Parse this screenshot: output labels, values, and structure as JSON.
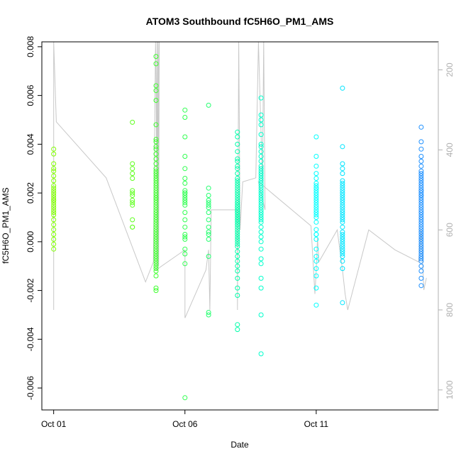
{
  "chart_data": {
    "type": "scatter",
    "title": "ATOM3 Southbound fC5H6O_PM1_AMS",
    "xlabel": "Date",
    "ylabel": "fC5H6O_PM1_AMS",
    "x_tick_labels": [
      "Oct 01",
      "Oct 06",
      "Oct 11"
    ],
    "x_tick_days": [
      1,
      6,
      11
    ],
    "xlim": [
      0.55,
      15.65
    ],
    "ylim": [
      -0.0069,
      0.0082
    ],
    "y_ticks": [
      -0.006,
      -0.004,
      -0.002,
      0.0,
      0.002,
      0.004,
      0.006,
      0.008
    ],
    "y_tick_labels": [
      "-0.006",
      "-0.004",
      "-0.002",
      "0.000",
      "0.002",
      "0.004",
      "0.006",
      "0.008"
    ],
    "right_axis": {
      "label": "",
      "reversed": true,
      "lim": [
        130,
        1050
      ],
      "ticks": [
        200,
        400,
        600,
        800,
        1000
      ],
      "tick_labels": [
        "200",
        "400",
        "600",
        "800",
        "1000"
      ],
      "color": "#b0b0b0"
    },
    "point_colors": {
      "day1": "#80ff00",
      "day4": "#60ff20",
      "day5": "#40ff30",
      "day6": "#30ff50",
      "day7": "#25ff70",
      "day8": "#00ffaa",
      "day9": "#00ffcc",
      "day11": "#00ffff",
      "day12": "#00e5ff",
      "day15": "#1e90ff"
    },
    "series": [
      {
        "x": [
          1.0,
          1.0,
          1.0,
          1.0,
          1.0,
          1.0,
          1.0,
          1.0,
          1.0,
          1.0,
          1.0,
          1.0,
          1.0,
          1.0,
          1.0,
          1.0,
          1.0,
          1.0,
          1.0,
          1.0,
          1.0,
          1.0,
          1.0,
          1.0,
          1.0,
          1.0,
          1.0,
          1.0
        ],
        "y": [
          0.0038,
          0.0036,
          0.0032,
          0.003,
          0.0029,
          0.0027,
          0.0025,
          0.0023,
          0.0022,
          0.0021,
          0.002,
          0.0019,
          0.0018,
          0.0017,
          0.0017,
          0.0016,
          0.0015,
          0.0014,
          0.0013,
          0.0012,
          0.0011,
          0.0009,
          0.0007,
          0.0005,
          0.0003,
          0.0001,
          -0.0001,
          -0.0003
        ],
        "color": "#80ff00"
      },
      {
        "x": [
          4.0,
          4.0,
          4.0,
          4.0,
          4.0,
          4.0,
          4.0,
          4.0,
          4.0,
          4.0,
          4.0,
          4.0,
          4.0,
          4.0
        ],
        "y": [
          0.0049,
          0.0032,
          0.003,
          0.0028,
          0.0026,
          0.0021,
          0.002,
          0.0019,
          0.0017,
          0.0016,
          0.0015,
          0.0009,
          0.0006,
          0.0006
        ],
        "color": "#60ff20"
      },
      {
        "x": [
          4.9,
          4.9,
          4.9,
          4.9,
          4.9,
          4.9,
          4.9,
          4.9,
          4.9,
          4.9,
          4.9,
          4.9,
          4.9,
          4.9,
          4.9,
          4.9,
          4.9,
          4.9,
          4.9,
          4.9,
          4.9,
          4.9,
          4.9,
          4.9,
          4.9,
          4.9,
          4.9,
          4.9,
          4.9,
          4.9,
          4.9,
          4.9,
          4.9,
          4.9,
          4.9,
          4.9,
          4.9,
          4.9,
          4.9,
          4.9,
          4.9,
          4.9,
          4.9,
          4.9,
          4.9,
          4.9,
          4.9,
          4.9,
          4.9,
          4.9,
          4.9,
          4.9,
          4.9,
          4.9,
          4.9,
          4.9,
          4.9,
          4.9,
          4.9,
          4.9
        ],
        "y": [
          0.0076,
          0.0073,
          0.0064,
          0.0062,
          0.0058,
          0.0048,
          0.0042,
          0.0041,
          0.0039,
          0.0038,
          0.0036,
          0.0034,
          0.0032,
          0.003,
          0.0029,
          0.0028,
          0.0027,
          0.0026,
          0.0025,
          0.0024,
          0.0023,
          0.0022,
          0.0021,
          0.002,
          0.0019,
          0.0018,
          0.0018,
          0.0017,
          0.0016,
          0.0015,
          0.0014,
          0.0013,
          0.0012,
          0.0011,
          0.001,
          0.0009,
          0.0008,
          0.0007,
          0.0006,
          0.0005,
          0.0004,
          0.0003,
          0.0002,
          0.0001,
          0.0,
          -0.0001,
          -0.0002,
          -0.0003,
          -0.0004,
          -0.0005,
          -0.0006,
          -0.0007,
          -0.0008,
          -0.0009,
          -0.001,
          -0.0011,
          -0.0012,
          -0.0014,
          -0.0019,
          -0.002
        ],
        "color": "#40ff30"
      },
      {
        "x": [
          6.0,
          6.0,
          6.0,
          6.0,
          6.0,
          6.0,
          6.0,
          6.0,
          6.0,
          6.0,
          6.0,
          6.0,
          6.0,
          6.0,
          6.0,
          6.0,
          6.0,
          6.0,
          6.0,
          6.0,
          6.0,
          6.0,
          6.0,
          6.0,
          6.0
        ],
        "y": [
          0.0054,
          0.0051,
          0.0043,
          0.0035,
          0.003,
          0.0026,
          0.0024,
          0.0021,
          0.002,
          0.002,
          0.0019,
          0.0018,
          0.0017,
          0.0016,
          0.0015,
          0.0012,
          0.0009,
          0.0006,
          0.0003,
          0.0002,
          0.0001,
          -0.0003,
          -0.0005,
          -0.0009,
          -0.0064
        ],
        "color": "#30ff50"
      },
      {
        "x": [
          6.9,
          6.9,
          6.9,
          6.9,
          6.9,
          6.9,
          6.9,
          6.9,
          6.9,
          6.9,
          6.9,
          6.9,
          6.9,
          6.9,
          6.9,
          6.9
        ],
        "y": [
          0.0056,
          0.0022,
          0.0019,
          0.0017,
          0.0016,
          0.0015,
          0.0014,
          0.0012,
          0.0009,
          0.0006,
          0.0004,
          0.0003,
          0.0001,
          -0.0006,
          -0.0029,
          -0.003
        ],
        "color": "#25ff70"
      },
      {
        "x": [
          8.0,
          8.0,
          8.0,
          8.0,
          8.0,
          8.0,
          8.0,
          8.0,
          8.0,
          8.0,
          8.0,
          8.0,
          8.0,
          8.0,
          8.0,
          8.0,
          8.0,
          8.0,
          8.0,
          8.0,
          8.0,
          8.0,
          8.0,
          8.0,
          8.0,
          8.0,
          8.0,
          8.0,
          8.0,
          8.0,
          8.0,
          8.0,
          8.0,
          8.0,
          8.0,
          8.0,
          8.0,
          8.0,
          8.0,
          8.0,
          8.0,
          8.0,
          8.0,
          8.0,
          8.0,
          8.0,
          8.0,
          8.0,
          8.0,
          8.0,
          8.0,
          8.0,
          8.0,
          8.0,
          8.0,
          8.0,
          8.0,
          8.0
        ],
        "y": [
          0.0045,
          0.0043,
          0.004,
          0.0037,
          0.0034,
          0.0033,
          0.0031,
          0.003,
          0.0028,
          0.0026,
          0.0025,
          0.0024,
          0.0023,
          0.0022,
          0.0021,
          0.002,
          0.0019,
          0.0018,
          0.0017,
          0.0016,
          0.0016,
          0.0015,
          0.0015,
          0.0014,
          0.0014,
          0.0013,
          0.0013,
          0.0012,
          0.0012,
          0.0011,
          0.0011,
          0.001,
          0.001,
          0.0009,
          0.0009,
          0.0008,
          0.0008,
          0.0007,
          0.0007,
          0.0006,
          0.0005,
          0.0004,
          0.0003,
          0.0002,
          0.0001,
          0.0,
          -0.0001,
          -0.0002,
          -0.0004,
          -0.0006,
          -0.0008,
          -0.001,
          -0.0012,
          -0.0015,
          -0.0019,
          -0.0022,
          -0.0034,
          -0.0036
        ],
        "color": "#00ffaa"
      },
      {
        "x": [
          8.9,
          8.9,
          8.9,
          8.9,
          8.9,
          8.9,
          8.9,
          8.9,
          8.9,
          8.9,
          8.9,
          8.9,
          8.9,
          8.9,
          8.9,
          8.9,
          8.9,
          8.9,
          8.9,
          8.9,
          8.9,
          8.9,
          8.9,
          8.9,
          8.9,
          8.9,
          8.9,
          8.9,
          8.9,
          8.9,
          8.9,
          8.9,
          8.9,
          8.9,
          8.9,
          8.9,
          8.9,
          8.9,
          8.9,
          8.9,
          8.9,
          8.9,
          8.9,
          8.9,
          8.9
        ],
        "y": [
          0.0059,
          0.0052,
          0.005,
          0.0048,
          0.0044,
          0.004,
          0.0039,
          0.0037,
          0.0035,
          0.0033,
          0.0031,
          0.003,
          0.0029,
          0.0028,
          0.0027,
          0.0026,
          0.0025,
          0.0024,
          0.0023,
          0.0022,
          0.0021,
          0.002,
          0.0019,
          0.0018,
          0.0017,
          0.0016,
          0.0015,
          0.0014,
          0.0013,
          0.0012,
          0.0011,
          0.001,
          0.0009,
          0.0008,
          0.0006,
          0.0004,
          0.0002,
          0.0,
          -0.0003,
          -0.0007,
          -0.0009,
          -0.0015,
          -0.0019,
          -0.003,
          -0.0046
        ],
        "color": "#00ffcc"
      },
      {
        "x": [
          11.0,
          11.0,
          11.0,
          11.0,
          11.0,
          11.0,
          11.0,
          11.0,
          11.0,
          11.0,
          11.0,
          11.0,
          11.0,
          11.0,
          11.0,
          11.0,
          11.0,
          11.0,
          11.0,
          11.0,
          11.0,
          11.0,
          11.0,
          11.0,
          11.0,
          11.0,
          11.0,
          11.0,
          11.0,
          11.0,
          11.0,
          11.0,
          11.0
        ],
        "y": [
          0.0043,
          0.0035,
          0.0031,
          0.0028,
          0.0026,
          0.0024,
          0.0023,
          0.0022,
          0.0022,
          0.0021,
          0.002,
          0.0019,
          0.0018,
          0.0017,
          0.0016,
          0.0015,
          0.0014,
          0.0013,
          0.0012,
          0.0011,
          0.001,
          0.0008,
          0.0005,
          0.0003,
          0.0003,
          0.0001,
          -0.0003,
          -0.0006,
          -0.0008,
          -0.0011,
          -0.0014,
          -0.0019,
          -0.0026
        ],
        "color": "#00ffff"
      },
      {
        "x": [
          12.0,
          12.0,
          12.0,
          12.0,
          12.0,
          12.0,
          12.0,
          12.0,
          12.0,
          12.0,
          12.0,
          12.0,
          12.0,
          12.0,
          12.0,
          12.0,
          12.0,
          12.0,
          12.0,
          12.0,
          12.0,
          12.0,
          12.0,
          12.0,
          12.0,
          12.0,
          12.0,
          12.0,
          12.0,
          12.0,
          12.0,
          12.0,
          12.0,
          12.0,
          12.0,
          12.0,
          12.0,
          12.0
        ],
        "y": [
          0.0063,
          0.0039,
          0.0032,
          0.003,
          0.0028,
          0.0025,
          0.0024,
          0.0023,
          0.0022,
          0.0021,
          0.002,
          0.0019,
          0.0018,
          0.0017,
          0.0016,
          0.0015,
          0.0014,
          0.0013,
          0.0012,
          0.0011,
          0.001,
          0.0009,
          0.0008,
          0.0006,
          0.0004,
          0.0003,
          0.0002,
          0.0001,
          0.0,
          -0.0001,
          -0.0002,
          -0.0003,
          -0.0004,
          -0.0005,
          -0.0006,
          -0.0008,
          -0.0011,
          -0.0025
        ],
        "color": "#00e5ff"
      },
      {
        "x": [
          15.0,
          15.0,
          15.0,
          15.0,
          15.0,
          15.0,
          15.0,
          15.0,
          15.0,
          15.0,
          15.0,
          15.0,
          15.0,
          15.0,
          15.0,
          15.0,
          15.0,
          15.0,
          15.0,
          15.0,
          15.0,
          15.0,
          15.0,
          15.0,
          15.0,
          15.0,
          15.0,
          15.0,
          15.0,
          15.0,
          15.0,
          15.0,
          15.0,
          15.0,
          15.0,
          15.0,
          15.0,
          15.0,
          15.0,
          15.0,
          15.0,
          15.0,
          15.0,
          15.0,
          15.0,
          15.0,
          15.0,
          15.0,
          15.0,
          15.0
        ],
        "y": [
          0.0047,
          0.0041,
          0.0038,
          0.0035,
          0.0033,
          0.0031,
          0.0029,
          0.0028,
          0.0027,
          0.0026,
          0.0025,
          0.0024,
          0.0023,
          0.0022,
          0.0021,
          0.0021,
          0.002,
          0.0019,
          0.0019,
          0.0018,
          0.0017,
          0.0016,
          0.0015,
          0.0014,
          0.0013,
          0.0012,
          0.0011,
          0.001,
          0.0009,
          0.0008,
          0.0007,
          0.0006,
          0.0005,
          0.0004,
          0.0003,
          0.0002,
          0.0001,
          0.0,
          -0.0001,
          -0.0002,
          -0.0003,
          -0.0004,
          -0.0005,
          -0.0006,
          -0.0007,
          -0.0008,
          -0.001,
          -0.0012,
          -0.0015,
          -0.0018
        ],
        "color": "#1e90ff"
      }
    ],
    "right_series": {
      "color": "#c8c8c8",
      "x": [
        1.0,
        1.0,
        1.1,
        3.0,
        4.5,
        4.8,
        4.88,
        4.9,
        4.92,
        4.94,
        4.96,
        4.98,
        5.0,
        5.02,
        4.9,
        6.0,
        6.0,
        6.8,
        6.9,
        6.95,
        7.0,
        8.0,
        8.0,
        8.05,
        8.1,
        8.2,
        8.7,
        8.8,
        8.9,
        8.95,
        9.0,
        9.05,
        8.8,
        10.8,
        10.95,
        11.0,
        11.05,
        11.1,
        11.8,
        11.9,
        12.0,
        12.1,
        12.2,
        13.0,
        14.0,
        14.9,
        15.0,
        15.1,
        15.2
      ],
      "y": [
        800,
        130,
        330,
        470,
        730,
        680,
        130,
        220,
        470,
        130,
        700,
        130,
        690,
        130,
        700,
        650,
        820,
        700,
        650,
        800,
        550,
        550,
        800,
        130,
        600,
        480,
        470,
        130,
        360,
        480,
        130,
        550,
        480,
        590,
        760,
        700,
        620,
        680,
        600,
        650,
        700,
        760,
        800,
        600,
        650,
        680,
        600,
        750,
        720
      ]
    }
  }
}
